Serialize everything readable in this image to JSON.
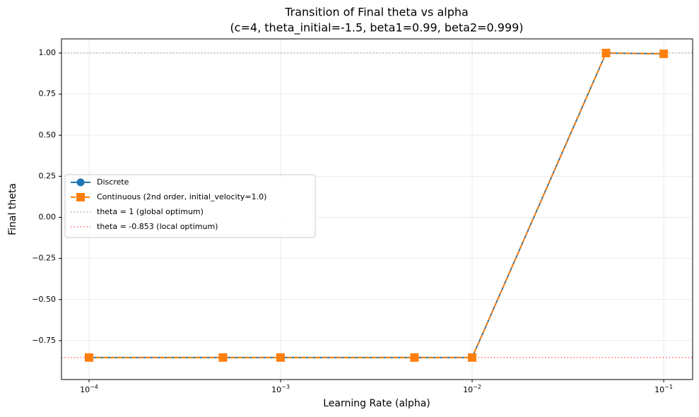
{
  "chart_data": {
    "type": "line",
    "title": "Transition of Final theta vs alpha",
    "subtitle": "(c=4, theta_initial=-1.5, beta1=0.99, beta2=0.999)",
    "x_label": "Learning Rate (alpha)",
    "y_label": "Final theta",
    "x_scale": "log",
    "x": [
      0.0001,
      0.0005,
      0.001,
      0.005,
      0.01,
      0.05,
      0.1
    ],
    "series": [
      {
        "name": "Discrete",
        "color": "#1f77b4",
        "marker": "circle",
        "line_style": "solid",
        "values": [
          -0.853,
          -0.853,
          -0.853,
          -0.853,
          -0.853,
          1.0,
          0.995
        ]
      },
      {
        "name": "Continuous (2nd order, initial_velocity=1.0)",
        "color": "#ff7f0e",
        "marker": "square",
        "line_style": "dashed",
        "values": [
          -0.853,
          -0.853,
          -0.853,
          -0.853,
          -0.853,
          1.0,
          0.995
        ]
      }
    ],
    "reference_lines": [
      {
        "name": "theta = 1 (global optimum)",
        "value": 1,
        "color": "#aaaaaa"
      },
      {
        "name": "theta = -0.853 (local optimum)",
        "value": -0.853,
        "color": "#ff6b6b"
      }
    ],
    "xlim": [
      7.18e-05,
      0.1416
    ],
    "ylim": [
      -0.987,
      1.086
    ],
    "xticks": [
      {
        "value": 0.0001,
        "label": "10",
        "exponent": "−4"
      },
      {
        "value": 0.001,
        "label": "10",
        "exponent": "−3"
      },
      {
        "value": 0.01,
        "label": "10",
        "exponent": "−2"
      },
      {
        "value": 0.1,
        "label": "10",
        "exponent": "−1"
      }
    ],
    "yticks": [
      {
        "value": -0.75,
        "label": "−0.75"
      },
      {
        "value": -0.5,
        "label": "−0.50"
      },
      {
        "value": -0.25,
        "label": "−0.25"
      },
      {
        "value": 0,
        "label": "0.00"
      },
      {
        "value": 0.25,
        "label": "0.25"
      },
      {
        "value": 0.5,
        "label": "0.50"
      },
      {
        "value": 0.75,
        "label": "0.75"
      },
      {
        "value": 1,
        "label": "1.00"
      }
    ],
    "grid": true,
    "legend": "center left"
  }
}
